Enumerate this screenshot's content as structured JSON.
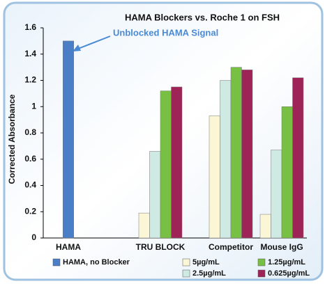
{
  "chart_data": {
    "type": "bar",
    "title": "HAMA Blockers vs. Roche 1 on FSH",
    "annotation": "Unblocked HAMA Signal",
    "y_label": "Corrected Absorbance",
    "categories": [
      "HAMA",
      "TRU BLOCK",
      "Competitor",
      "Mouse IgG"
    ],
    "series": [
      {
        "name": "HAMA, no Blocker",
        "color": "#4a7fc8",
        "values": [
          1.5,
          null,
          null,
          null
        ]
      },
      {
        "name": "5µg/mL",
        "color": "#fbf7d6",
        "values": [
          null,
          0.19,
          0.93,
          0.18
        ]
      },
      {
        "name": "2.5µg/mL",
        "color": "#cfe9e3",
        "values": [
          null,
          0.66,
          1.2,
          0.67
        ]
      },
      {
        "name": "1.25µg/mL",
        "color": "#78c043",
        "values": [
          null,
          1.12,
          1.3,
          1.0
        ]
      },
      {
        "name": "0.625µg/mL",
        "color": "#9e2457",
        "values": [
          null,
          1.15,
          1.28,
          1.22
        ]
      }
    ],
    "ylim": [
      0,
      1.6
    ],
    "yticks": [
      0,
      0.2,
      0.4,
      0.6,
      0.8,
      1,
      1.2,
      1.4,
      1.6
    ],
    "grid": false
  }
}
